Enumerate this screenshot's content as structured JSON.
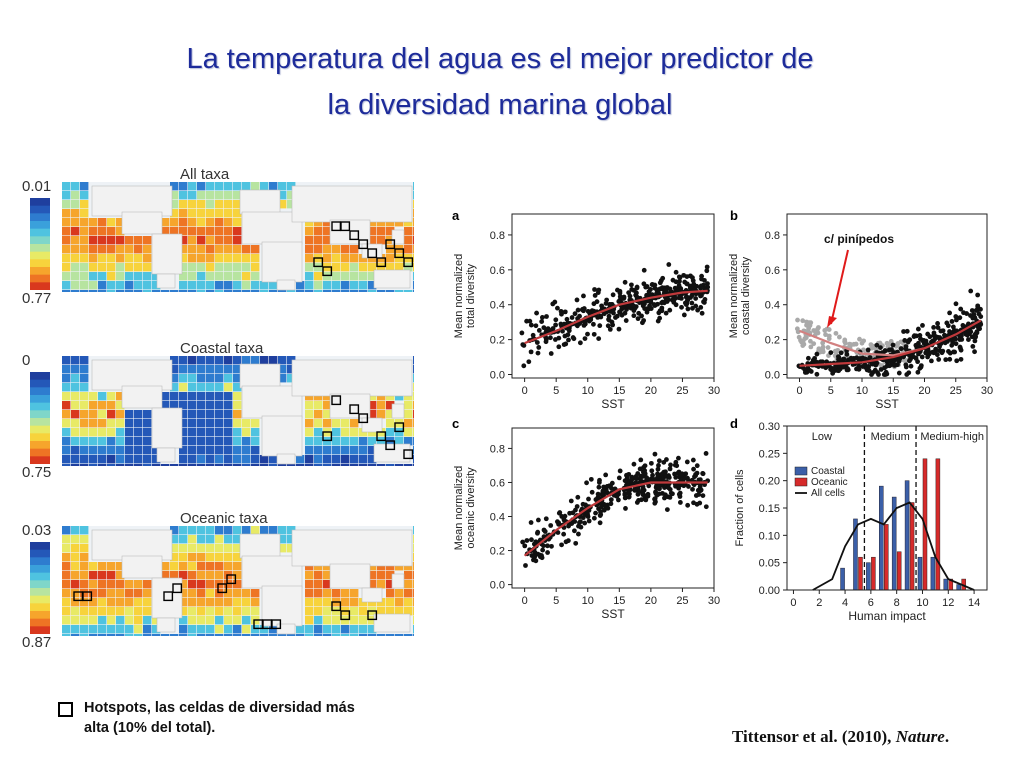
{
  "title": {
    "line1": "La temperatura del agua es el mejor predictor de",
    "line2": "la diversidad marina global"
  },
  "maps": [
    {
      "caption": "All taxa",
      "scale_top": "0.01",
      "scale_bottom": "0.77"
    },
    {
      "caption": "Coastal taxa",
      "scale_top": "0",
      "scale_bottom": "0.75"
    },
    {
      "caption": "Oceanic taxa",
      "scale_top": "0.03",
      "scale_bottom": "0.87"
    }
  ],
  "legend_note": {
    "line1": "Hotspots, las celdas de diversidad más",
    "line2": "alta (10% del total)."
  },
  "citation": {
    "authors": "Tittensor et al. (2010), ",
    "journal": "Nature",
    "end": "."
  },
  "annotation": "c/ pinípedos",
  "colors": {
    "title": "#1d2b9a",
    "points": "#111111",
    "points_gray": "#a9a9a9",
    "fit": "#c0393b",
    "coastal": "#3b5fa8",
    "oceanic": "#d62a2a",
    "arrow": "#e01a1a"
  },
  "chart_data": [
    {
      "panel": "a",
      "type": "scatter",
      "xlabel": "SST",
      "ylabel": "Mean normalized total diversity",
      "xlim": [
        -2,
        30
      ],
      "ylim": [
        -0.02,
        0.92
      ],
      "xticks": [
        0,
        5,
        10,
        15,
        20,
        25,
        30
      ],
      "yticks": [
        0.0,
        0.2,
        0.4,
        0.6,
        0.8
      ],
      "fit": {
        "x": [
          0,
          5,
          10,
          15,
          20,
          25,
          29
        ],
        "y": [
          0.18,
          0.25,
          0.33,
          0.4,
          0.44,
          0.47,
          0.48
        ]
      }
    },
    {
      "panel": "b",
      "type": "scatter",
      "xlabel": "SST",
      "ylabel": "Mean normalized coastal diversity",
      "xlim": [
        -2,
        30
      ],
      "ylim": [
        -0.02,
        0.92
      ],
      "xticks": [
        0,
        5,
        10,
        15,
        20,
        25,
        30
      ],
      "yticks": [
        0.0,
        0.2,
        0.4,
        0.6,
        0.8
      ],
      "fit": {
        "x": [
          0,
          5,
          10,
          15,
          20,
          25,
          29
        ],
        "y": [
          0.05,
          0.06,
          0.07,
          0.1,
          0.15,
          0.23,
          0.31
        ]
      },
      "fit_gray": {
        "x": [
          0,
          5,
          10,
          15,
          20
        ],
        "y": [
          0.25,
          0.18,
          0.12,
          0.11,
          0.15
        ]
      }
    },
    {
      "panel": "c",
      "type": "scatter",
      "xlabel": "SST",
      "ylabel": "Mean normalized oceanic diversity",
      "xlim": [
        -2,
        30
      ],
      "ylim": [
        -0.02,
        0.92
      ],
      "xticks": [
        0,
        5,
        10,
        15,
        20,
        25,
        30
      ],
      "yticks": [
        0.0,
        0.2,
        0.4,
        0.6,
        0.8
      ],
      "fit": {
        "x": [
          0,
          5,
          10,
          15,
          20,
          25,
          29
        ],
        "y": [
          0.17,
          0.32,
          0.45,
          0.56,
          0.6,
          0.6,
          0.6
        ]
      }
    },
    {
      "panel": "d",
      "type": "bar",
      "xlabel": "Human impact",
      "ylabel": "Fraction of cells",
      "xlim": [
        -0.5,
        15
      ],
      "ylim": [
        0,
        0.3
      ],
      "xticks": [
        0,
        2,
        4,
        6,
        8,
        10,
        12,
        14
      ],
      "yticks": [
        0.0,
        0.05,
        0.1,
        0.15,
        0.2,
        0.25,
        0.3
      ],
      "regions": [
        "Low",
        "Medium",
        "Medium-high"
      ],
      "thresholds": [
        5.5,
        9.5
      ],
      "categories": [
        3,
        4,
        5,
        6,
        7,
        8,
        9,
        10,
        11,
        12,
        13,
        14
      ],
      "series": [
        {
          "name": "Coastal",
          "values": [
            0,
            0.04,
            0.13,
            0.05,
            0.19,
            0.17,
            0.2,
            0.06,
            0.06,
            0.02,
            0.01,
            0
          ]
        },
        {
          "name": "Oceanic",
          "values": [
            0,
            0,
            0.06,
            0.06,
            0.12,
            0.07,
            0.16,
            0.24,
            0.24,
            0.02,
            0.02,
            0
          ]
        },
        {
          "name": "All cells",
          "values": [
            0.02,
            0.08,
            0.12,
            0.13,
            0.12,
            0.15,
            0.16,
            0.13,
            0.06,
            0.02,
            0.01,
            0.0
          ],
          "style": "line"
        }
      ]
    }
  ]
}
